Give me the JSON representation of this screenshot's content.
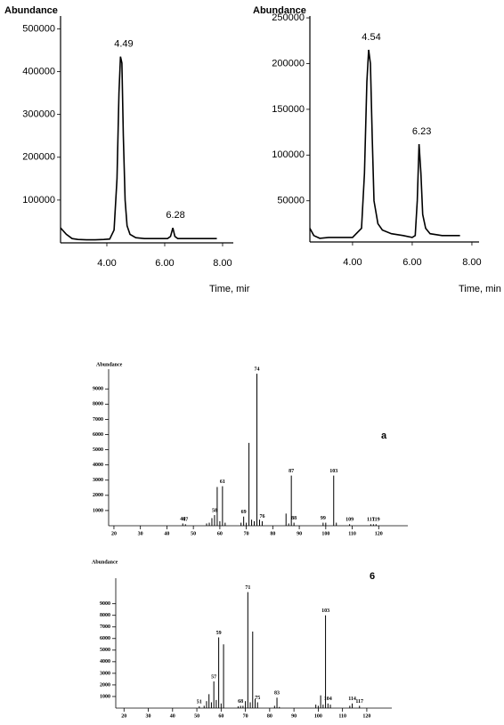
{
  "chart_data": [
    {
      "type": "line",
      "ylabel": "Abundance",
      "xlabel": "Time, mir",
      "color": "#000000",
      "xlim": [
        2.4,
        8.37
      ],
      "ylim": [
        0,
        530000
      ],
      "xticks": [
        {
          "value": 4,
          "label": "4.00"
        },
        {
          "value": 6,
          "label": "6.00"
        },
        {
          "value": 8,
          "label": "8.00"
        }
      ],
      "yticks": [
        100000,
        200000,
        300000,
        400000,
        500000
      ],
      "x": [
        2.4,
        2.6,
        2.8,
        3.0,
        3.3,
        3.6,
        3.9,
        4.1,
        4.25,
        4.35,
        4.42,
        4.47,
        4.52,
        4.57,
        4.63,
        4.7,
        4.8,
        5.0,
        5.3,
        5.7,
        6.1,
        6.2,
        6.28,
        6.35,
        6.45,
        7.0,
        7.8
      ],
      "values": [
        35000,
        20000,
        10000,
        8000,
        7000,
        7000,
        8000,
        9000,
        30000,
        150000,
        350000,
        435000,
        420000,
        250000,
        100000,
        40000,
        20000,
        12000,
        10000,
        10000,
        10000,
        15000,
        35000,
        15000,
        10000,
        10000,
        10000
      ],
      "annotations": [
        {
          "text": "4.49",
          "x": 4.49,
          "y": 435000
        },
        {
          "text": "6.28",
          "x": 6.28,
          "y": 35000
        }
      ]
    },
    {
      "type": "line",
      "ylabel": "Abundance",
      "xlabel": "Time, min",
      "color": "#000000",
      "xlim": [
        2.57,
        8.24
      ],
      "ylim": [
        5000,
        252000
      ],
      "xticks": [
        {
          "value": 4,
          "label": "4.00"
        },
        {
          "value": 6,
          "label": "6.00"
        },
        {
          "value": 8,
          "label": "8.00"
        }
      ],
      "yticks": [
        50000,
        100000,
        150000,
        200000,
        250000
      ],
      "x": [
        2.57,
        2.7,
        2.9,
        3.2,
        3.6,
        4.0,
        4.3,
        4.4,
        4.48,
        4.54,
        4.6,
        4.66,
        4.72,
        4.85,
        5.0,
        5.3,
        5.7,
        6.0,
        6.1,
        6.17,
        6.23,
        6.29,
        6.35,
        6.45,
        6.6,
        7.0,
        7.6
      ],
      "values": [
        20000,
        12000,
        9000,
        10000,
        10000,
        10000,
        20000,
        80000,
        180000,
        215000,
        200000,
        120000,
        50000,
        25000,
        18000,
        14000,
        12000,
        10000,
        12000,
        50000,
        112000,
        80000,
        35000,
        20000,
        14000,
        12000,
        12000
      ],
      "annotations": [
        {
          "text": "4.54",
          "x": 4.54,
          "y": 215000
        },
        {
          "text": "6.23",
          "x": 6.23,
          "y": 112000
        }
      ]
    },
    {
      "type": "bar",
      "ylabel": "Abundance",
      "panel_label": "a",
      "color": "#000000",
      "xlim": [
        18,
        131
      ],
      "ylim": [
        0,
        10300
      ],
      "xticks": [
        20,
        30,
        40,
        50,
        60,
        70,
        80,
        90,
        100,
        110,
        120
      ],
      "yticks": [
        1000,
        2000,
        3000,
        4000,
        5000,
        6000,
        7000,
        8000,
        9000
      ],
      "x": [
        46,
        47,
        55,
        56,
        57,
        58,
        59,
        60,
        61,
        62,
        68,
        69,
        70,
        71,
        72,
        73,
        74,
        75,
        76,
        85,
        86,
        87,
        88,
        99,
        100,
        103,
        104,
        109,
        117,
        118,
        119
      ],
      "values": [
        150,
        100,
        150,
        200,
        500,
        700,
        2550,
        300,
        2600,
        200,
        200,
        600,
        200,
        5450,
        400,
        300,
        10000,
        400,
        300,
        800,
        150,
        3300,
        200,
        200,
        200,
        3300,
        200,
        100,
        100,
        100,
        100
      ],
      "annotations": [
        {
          "text": "46",
          "x": 46,
          "y": 150
        },
        {
          "text": "47",
          "x": 47,
          "y": 100
        },
        {
          "text": "58",
          "x": 58,
          "y": 700
        },
        {
          "text": "61",
          "x": 61,
          "y": 2600
        },
        {
          "text": "69",
          "x": 69,
          "y": 600
        },
        {
          "text": "74",
          "x": 74,
          "y": 10000
        },
        {
          "text": "76",
          "x": 76,
          "y": 300
        },
        {
          "text": "87",
          "x": 87,
          "y": 3300
        },
        {
          "text": "88",
          "x": 88,
          "y": 200
        },
        {
          "text": "99",
          "x": 99,
          "y": 200
        },
        {
          "text": "103",
          "x": 103,
          "y": 3300
        },
        {
          "text": "109",
          "x": 109,
          "y": 100
        },
        {
          "text": "117",
          "x": 117,
          "y": 100
        },
        {
          "text": "119",
          "x": 119,
          "y": 100
        }
      ]
    },
    {
      "type": "bar",
      "ylabel": "Abundance",
      "panel_label": "6",
      "color": "#000000",
      "xlim": [
        16.6,
        130.3
      ],
      "ylim": [
        0,
        11200
      ],
      "xticks": [
        20,
        30,
        40,
        50,
        60,
        70,
        80,
        90,
        100,
        110,
        120
      ],
      "yticks": [
        1000,
        2000,
        3000,
        4000,
        5000,
        6000,
        7000,
        8000,
        9000
      ],
      "x": [
        51,
        53,
        54,
        55,
        56,
        57,
        58,
        59,
        60,
        61,
        67,
        68,
        69,
        70,
        71,
        72,
        73,
        74,
        75,
        82,
        83,
        84,
        99,
        100,
        101,
        102,
        103,
        104,
        105,
        113,
        114,
        117
      ],
      "values": [
        150,
        200,
        600,
        1200,
        500,
        2300,
        700,
        6100,
        400,
        5500,
        150,
        200,
        200,
        600,
        10000,
        500,
        6600,
        800,
        500,
        200,
        900,
        100,
        300,
        200,
        1100,
        300,
        8000,
        400,
        300,
        200,
        400,
        200
      ],
      "annotations": [
        {
          "text": "51",
          "x": 51,
          "y": 150
        },
        {
          "text": "57",
          "x": 57,
          "y": 2300
        },
        {
          "text": "59",
          "x": 59,
          "y": 6100
        },
        {
          "text": "68",
          "x": 68,
          "y": 200
        },
        {
          "text": "71",
          "x": 71,
          "y": 10000
        },
        {
          "text": "75",
          "x": 75,
          "y": 500
        },
        {
          "text": "83",
          "x": 83,
          "y": 900
        },
        {
          "text": "103",
          "x": 103,
          "y": 8000
        },
        {
          "text": "104",
          "x": 104,
          "y": 400
        },
        {
          "text": "114",
          "x": 114,
          "y": 400
        },
        {
          "text": "117",
          "x": 117,
          "y": 200
        }
      ]
    }
  ]
}
